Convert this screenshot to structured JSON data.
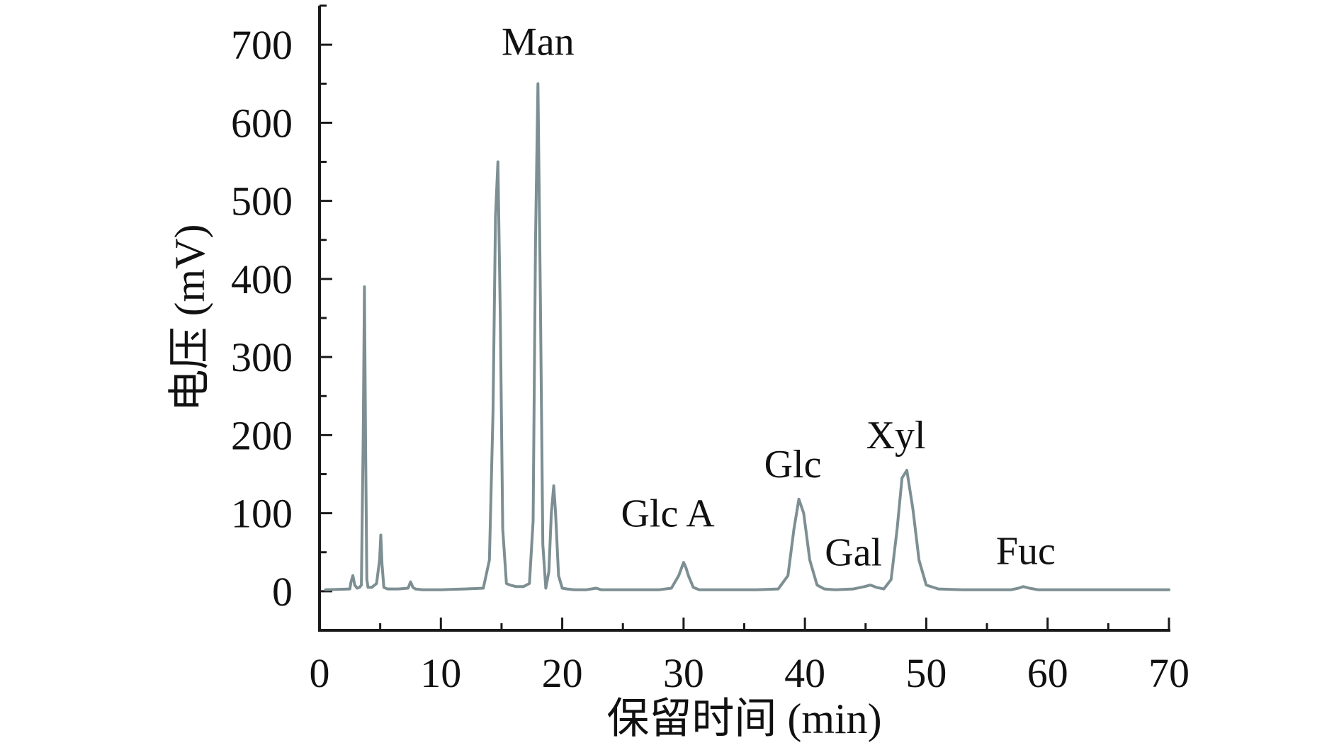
{
  "chart_data": {
    "type": "line",
    "title": "",
    "xlabel": "保留时间 (min)",
    "ylabel": "电压 (mV)",
    "xlim": [
      0,
      70
    ],
    "ylim": [
      -50,
      750
    ],
    "x_ticks": [
      0,
      10,
      20,
      30,
      40,
      50,
      60,
      70
    ],
    "y_ticks": [
      0,
      100,
      200,
      300,
      400,
      500,
      600,
      700
    ],
    "grid": false,
    "legend": "none",
    "line_color": "#7d8f93",
    "axis_color": "#1a1a1a",
    "series": [
      {
        "x": [
          0.5,
          2.5,
          2.6,
          2.75,
          2.9,
          3.1,
          3.3,
          3.45,
          3.6,
          3.7,
          3.8,
          3.9,
          4.0,
          4.3,
          4.7,
          4.95,
          5.05,
          5.15,
          5.3,
          5.6,
          6.5,
          7.3,
          7.5,
          7.7,
          7.9,
          8.5,
          10.0,
          12.0,
          13.5,
          14.0,
          14.3,
          14.5,
          14.7,
          14.9,
          15.1,
          15.4,
          15.7,
          16.2,
          16.8,
          17.3,
          17.6,
          17.8,
          18.0,
          18.2,
          18.4,
          18.65,
          18.9,
          19.1,
          19.3,
          19.45,
          19.7,
          20.0,
          20.4,
          21.0,
          22.0,
          22.8,
          23.2,
          24.0,
          26.0,
          28.0,
          29.0,
          29.6,
          30.0,
          30.2,
          30.4,
          30.8,
          31.3,
          32.0,
          34.0,
          36.0,
          37.8,
          38.6,
          39.1,
          39.5,
          39.9,
          40.4,
          41.0,
          41.6,
          42.5,
          44.0,
          44.9,
          45.4,
          45.9,
          46.5,
          47.1,
          47.6,
          48.0,
          48.4,
          48.9,
          49.4,
          50.0,
          51.0,
          53.0,
          55.0,
          57.0,
          57.6,
          58.0,
          58.5,
          59.2,
          61.0,
          64.0,
          67.0,
          70.0
        ],
        "y": [
          2,
          3,
          12,
          20,
          8,
          4,
          5,
          8,
          200,
          390,
          180,
          15,
          5,
          5,
          10,
          40,
          72,
          35,
          5,
          3,
          3,
          4,
          12,
          5,
          3,
          2,
          2,
          3,
          4,
          40,
          230,
          480,
          550,
          350,
          80,
          10,
          8,
          6,
          6,
          10,
          90,
          450,
          650,
          380,
          60,
          4,
          25,
          100,
          135,
          100,
          20,
          4,
          3,
          2,
          2,
          4,
          2,
          2,
          2,
          2,
          4,
          20,
          37,
          30,
          20,
          5,
          2,
          2,
          2,
          2,
          3,
          20,
          80,
          118,
          100,
          40,
          8,
          3,
          2,
          3,
          6,
          8,
          5,
          3,
          15,
          80,
          145,
          155,
          105,
          40,
          8,
          3,
          2,
          2,
          2,
          4,
          6,
          4,
          2,
          2,
          2,
          2,
          2
        ]
      }
    ],
    "annotations": [
      {
        "text": "Man",
        "x": 18.0,
        "y": 687
      },
      {
        "text": "Glc A",
        "x": 28.7,
        "y": 83
      },
      {
        "text": "Glc",
        "x": 39.0,
        "y": 146
      },
      {
        "text": "Gal",
        "x": 44.0,
        "y": 33
      },
      {
        "text": "Xyl",
        "x": 47.5,
        "y": 183
      },
      {
        "text": "Fuc",
        "x": 58.2,
        "y": 35
      }
    ]
  }
}
